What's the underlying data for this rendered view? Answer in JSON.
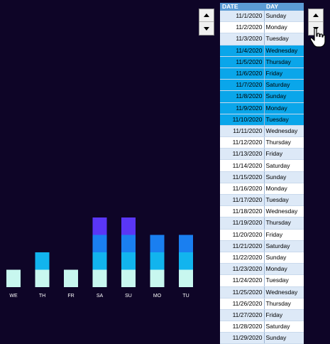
{
  "table": {
    "headers": [
      "DATE",
      "DAY"
    ],
    "rows": [
      [
        "11/1/2020",
        "Sunday"
      ],
      [
        "11/2/2020",
        "Monday"
      ],
      [
        "11/3/2020",
        "Tuesday"
      ],
      [
        "11/4/2020",
        "Wednesday"
      ],
      [
        "11/5/2020",
        "Thursday"
      ],
      [
        "11/6/2020",
        "Friday"
      ],
      [
        "11/7/2020",
        "Saturday"
      ],
      [
        "11/8/2020",
        "Sunday"
      ],
      [
        "11/9/2020",
        "Monday"
      ],
      [
        "11/10/2020",
        "Tuesday"
      ],
      [
        "11/11/2020",
        "Wednesday"
      ],
      [
        "11/12/2020",
        "Thursday"
      ],
      [
        "11/13/2020",
        "Friday"
      ],
      [
        "11/14/2020",
        "Saturday"
      ],
      [
        "11/15/2020",
        "Sunday"
      ],
      [
        "11/16/2020",
        "Monday"
      ],
      [
        "11/17/2020",
        "Tuesday"
      ],
      [
        "11/18/2020",
        "Wednesday"
      ],
      [
        "11/19/2020",
        "Thursday"
      ],
      [
        "11/20/2020",
        "Friday"
      ],
      [
        "11/21/2020",
        "Saturday"
      ],
      [
        "11/22/2020",
        "Sunday"
      ],
      [
        "11/23/2020",
        "Monday"
      ],
      [
        "11/24/2020",
        "Tuesday"
      ],
      [
        "11/25/2020",
        "Wednesday"
      ],
      [
        "11/26/2020",
        "Thursday"
      ],
      [
        "11/27/2020",
        "Friday"
      ],
      [
        "11/28/2020",
        "Saturday"
      ],
      [
        "11/29/2020",
        "Sunday"
      ]
    ],
    "highlighted_rows": [
      3,
      4,
      5,
      6,
      7,
      8,
      9
    ]
  },
  "chart_data": {
    "type": "bar",
    "stacked": true,
    "categories": [
      "WE",
      "TH",
      "FR",
      "SA",
      "SU",
      "MO",
      "TU"
    ],
    "series": [
      {
        "values": [
          1,
          1,
          1,
          1,
          1,
          1,
          1
        ],
        "color": "#c8f7ef"
      },
      {
        "values": [
          0,
          1,
          0,
          1,
          1,
          1,
          1
        ],
        "color": "#12b4ee"
      },
      {
        "values": [
          0,
          0,
          0,
          1,
          1,
          1,
          1
        ],
        "color": "#1a7ff0"
      },
      {
        "values": [
          0,
          0,
          0,
          1,
          1,
          0,
          0
        ],
        "color": "#5a36f5"
      }
    ]
  },
  "colors": {
    "background": "#0e0527",
    "header": "#5b9bd5",
    "highlight": "#0aa6ea"
  },
  "icons": {
    "cursor": "hand-pointer-icon"
  }
}
